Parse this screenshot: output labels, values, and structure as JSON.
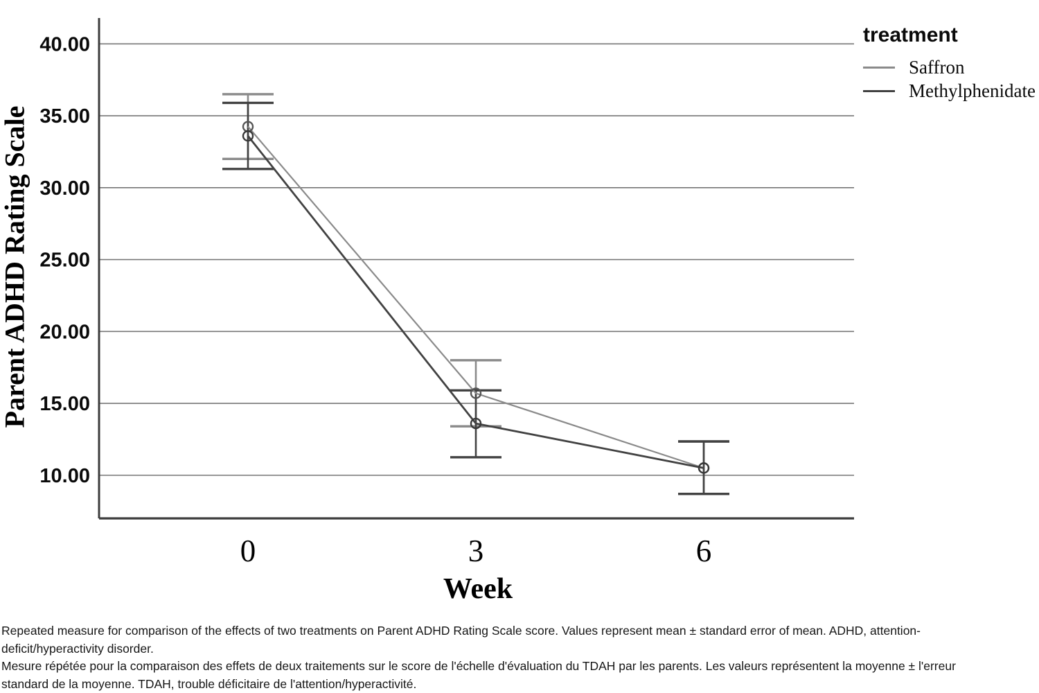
{
  "figure": {
    "caption_lines": [
      "Repeated measure for comparison of the effects of two treatments on Parent ADHD Rating Scale score. Values represent mean ± standard error of mean. ADHD, attention-",
      "deficit/hyperactivity disorder.",
      "Mesure répétée pour la comparaison des effets de deux traitements sur le score de l'échelle d'évaluation du TDAH par les parents. Les valeurs représentent la moyenne ± l'erreur",
      "standard de la moyenne. TDAH, trouble déficitaire de l'attention/hyperactivité."
    ]
  },
  "chart_data": {
    "type": "line",
    "title": "",
    "xlabel": "Week",
    "ylabel": "Parent ADHD Rating Scale",
    "legend_title": "treatment",
    "legend_position": "top-right",
    "grid": true,
    "error_bars": "mean ± standard error of mean",
    "x": [
      0,
      3,
      6
    ],
    "xtick_labels": [
      "0",
      "3",
      "6"
    ],
    "yticks": [
      40,
      35,
      30,
      25,
      20,
      15,
      10
    ],
    "ytick_labels": [
      "40.00",
      "35.00",
      "30.00",
      "25.00",
      "20.00",
      "15.00",
      "10.00"
    ],
    "ylim": [
      7.0,
      41.8
    ],
    "series": [
      {
        "name": "Saffron",
        "color": "#8a8a8a",
        "marker_color": "#555555",
        "line_width": 2.2,
        "means": [
          34.25,
          15.7,
          10.5
        ],
        "upper": [
          36.5,
          18.0,
          12.35
        ],
        "lower": [
          32.0,
          13.4,
          8.7
        ]
      },
      {
        "name": "Methylphenidate",
        "color": "#424242",
        "marker_color": "#383838",
        "line_width": 2.8,
        "means": [
          33.6,
          13.6,
          10.5
        ],
        "upper": [
          35.9,
          15.9,
          12.35
        ],
        "lower": [
          31.3,
          11.25,
          8.7
        ]
      }
    ],
    "colors": {
      "gridline": "#767676",
      "axis": "#3c3c3c",
      "tick_text": "#0a0a0a"
    }
  }
}
